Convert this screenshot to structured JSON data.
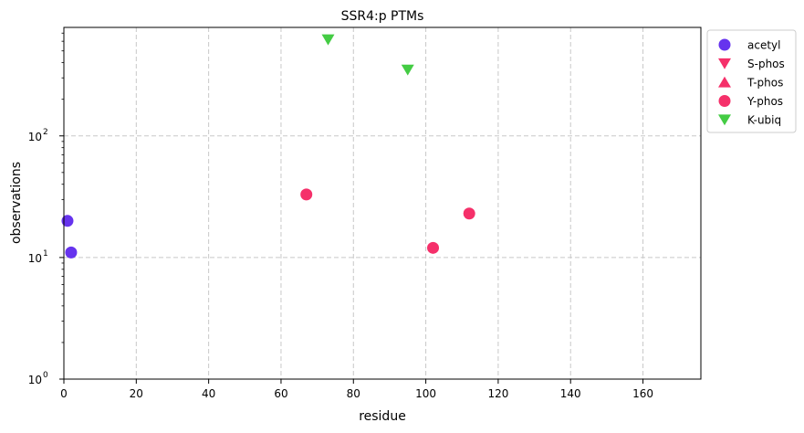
{
  "chart_data": {
    "type": "scatter",
    "title": "SSR4:p PTMs",
    "xlabel": "residue",
    "ylabel": "observations",
    "xlim": [
      0,
      176
    ],
    "ylim": [
      1,
      780
    ],
    "yscale": "log",
    "grid": true,
    "legend_position": "outside-right-top",
    "x_ticks": [
      0,
      20,
      40,
      60,
      80,
      100,
      120,
      140,
      160
    ],
    "x_tick_labels": [
      "0",
      "20",
      "40",
      "60",
      "80",
      "100",
      "120",
      "140",
      "160"
    ],
    "y_ticks": [
      1,
      10,
      100
    ],
    "y_tick_labels": [
      {
        "base": "10",
        "exp": "0"
      },
      {
        "base": "10",
        "exp": "1"
      },
      {
        "base": "10",
        "exp": "2"
      }
    ],
    "series": [
      {
        "name": "acetyl",
        "marker": "circle",
        "color": "#6633ee",
        "points": [
          [
            1,
            20
          ],
          [
            2,
            11
          ]
        ]
      },
      {
        "name": "S-phos",
        "marker": "triangle-down",
        "color": "#f5306a",
        "points": []
      },
      {
        "name": "T-phos",
        "marker": "triangle-up",
        "color": "#f5306a",
        "points": []
      },
      {
        "name": "Y-phos",
        "marker": "circle",
        "color": "#f5306a",
        "points": [
          [
            67,
            33
          ],
          [
            102,
            12
          ],
          [
            112,
            23
          ]
        ]
      },
      {
        "name": "K-ubiq",
        "marker": "triangle-down",
        "color": "#44cc44",
        "points": [
          [
            73,
            620
          ],
          [
            95,
            350
          ]
        ]
      }
    ]
  }
}
